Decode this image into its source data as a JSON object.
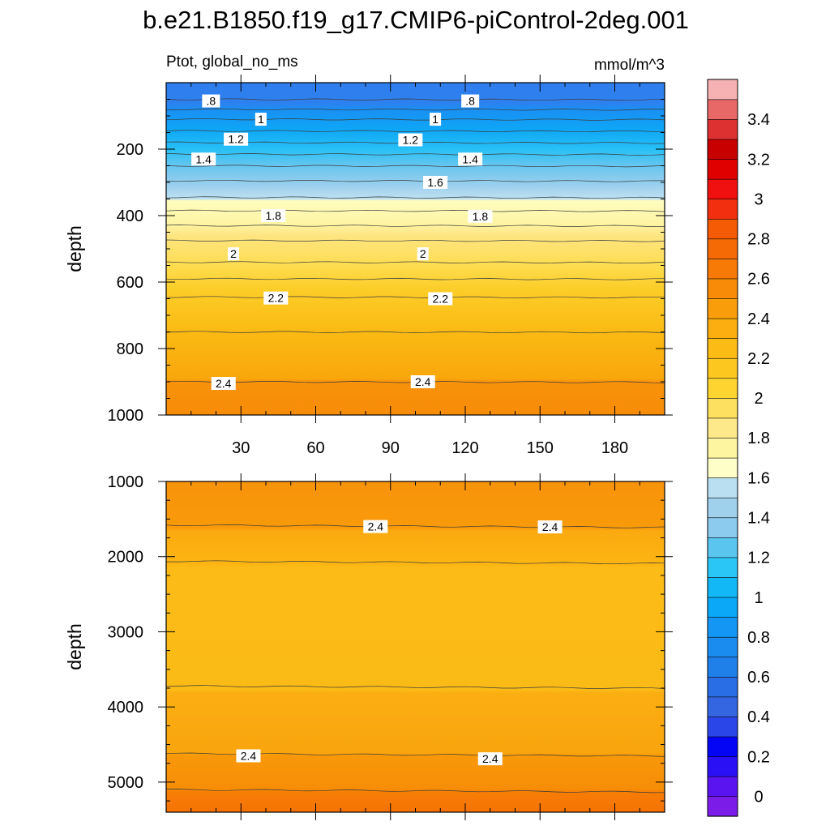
{
  "title": "b.e21.B1850.f19_g17.CMIP6-piControl-2deg.001",
  "subtitle_left": "Ptot, global_no_ms",
  "subtitle_right": "mmol/m^3",
  "chart_data": {
    "type": "heatmap",
    "variable": "Ptot",
    "units": "mmol/m^3",
    "xlim": [
      0,
      200
    ],
    "x_ticks": [
      30,
      60,
      90,
      120,
      150,
      180
    ],
    "x_tick_labels": [
      "30",
      "60",
      "90",
      "120",
      "150",
      "180"
    ],
    "contour_levels": [
      0,
      0.1,
      0.2,
      0.3,
      0.4,
      0.5,
      0.6,
      0.7,
      0.8,
      0.9,
      1.0,
      1.1,
      1.2,
      1.3,
      1.4,
      1.5,
      1.6,
      1.7,
      1.8,
      1.9,
      2.0,
      2.1,
      2.2,
      2.3,
      2.4,
      2.5,
      2.6,
      2.7,
      2.8,
      2.9,
      3.0,
      3.1,
      3.2,
      3.3,
      3.4,
      3.5
    ],
    "colorbar": {
      "labels": [
        "0",
        "0.2",
        "0.4",
        "0.6",
        "0.8",
        "1",
        "1.2",
        "1.4",
        "1.6",
        "1.8",
        "2",
        "2.2",
        "2.4",
        "2.6",
        "2.8",
        "3",
        "3.2",
        "3.4"
      ],
      "colors": [
        "#7b1ce8",
        "#5a14f0",
        "#2a10f5",
        "#0505f5",
        "#2a46e8",
        "#3366e0",
        "#2a6ee5",
        "#2080ea",
        "#1a8cf0",
        "#1496f5",
        "#0aa8f7",
        "#12b8f5",
        "#2ac6f5",
        "#5ac6f0",
        "#8ccaee",
        "#9fd0ec",
        "#b9dff1",
        "#fefec8",
        "#fef5a0",
        "#fee98a",
        "#fde060",
        "#fdd430",
        "#fcc820",
        "#fcbc15",
        "#fcae10",
        "#f99e0a",
        "#f88b08",
        "#f77a06",
        "#f56a05",
        "#f55a04",
        "#f23010",
        "#f01010",
        "#e00000",
        "#c80000",
        "#dd3030",
        "#e86868",
        "#f6b2b2"
      ]
    },
    "panels": [
      {
        "name": "upper",
        "ylabel": "depth",
        "ylim": [
          0,
          1000
        ],
        "y_ticks": [
          200,
          400,
          600,
          800,
          1000
        ],
        "y_tick_labels": [
          "200",
          "400",
          "600",
          "800",
          "1000"
        ],
        "contour_depths": [
          50,
          80,
          110,
          145,
          180,
          215,
          250,
          295,
          345,
          385,
          430,
          475,
          540,
          590,
          645,
          750,
          900
        ],
        "contour_labels": [
          {
            "text": ".8",
            "x": 18,
            "y": 55
          },
          {
            "text": ".8",
            "x": 122,
            "y": 55
          },
          {
            "text": "1",
            "x": 38,
            "y": 110
          },
          {
            "text": "1",
            "x": 108,
            "y": 110
          },
          {
            "text": "1.2",
            "x": 28,
            "y": 170
          },
          {
            "text": "1.2",
            "x": 98,
            "y": 172
          },
          {
            "text": "1.4",
            "x": 15,
            "y": 230
          },
          {
            "text": "1.4",
            "x": 122,
            "y": 230
          },
          {
            "text": "1.6",
            "x": 108,
            "y": 300
          },
          {
            "text": "1.8",
            "x": 43,
            "y": 400
          },
          {
            "text": "1.8",
            "x": 126,
            "y": 402
          },
          {
            "text": "2",
            "x": 27,
            "y": 515
          },
          {
            "text": "2",
            "x": 103,
            "y": 515
          },
          {
            "text": "2.2",
            "x": 44,
            "y": 648
          },
          {
            "text": "2.2",
            "x": 110,
            "y": 650
          },
          {
            "text": "2.4",
            "x": 23,
            "y": 905
          },
          {
            "text": "2.4",
            "x": 103,
            "y": 900
          }
        ]
      },
      {
        "name": "lower",
        "ylabel": "depth",
        "ylim": [
          1000,
          5400
        ],
        "y_ticks": [
          1000,
          2000,
          3000,
          4000,
          5000
        ],
        "y_tick_labels": [
          "1000",
          "2000",
          "3000",
          "4000",
          "5000"
        ],
        "contour_depths": [
          1580,
          2060,
          3720,
          4620,
          5100
        ],
        "contour_labels": [
          {
            "text": "2.4",
            "x": 84,
            "y": 1600
          },
          {
            "text": "2.4",
            "x": 154,
            "y": 1605
          },
          {
            "text": "2.4",
            "x": 33,
            "y": 4650
          },
          {
            "text": "2.4",
            "x": 130,
            "y": 4690
          }
        ]
      }
    ]
  }
}
